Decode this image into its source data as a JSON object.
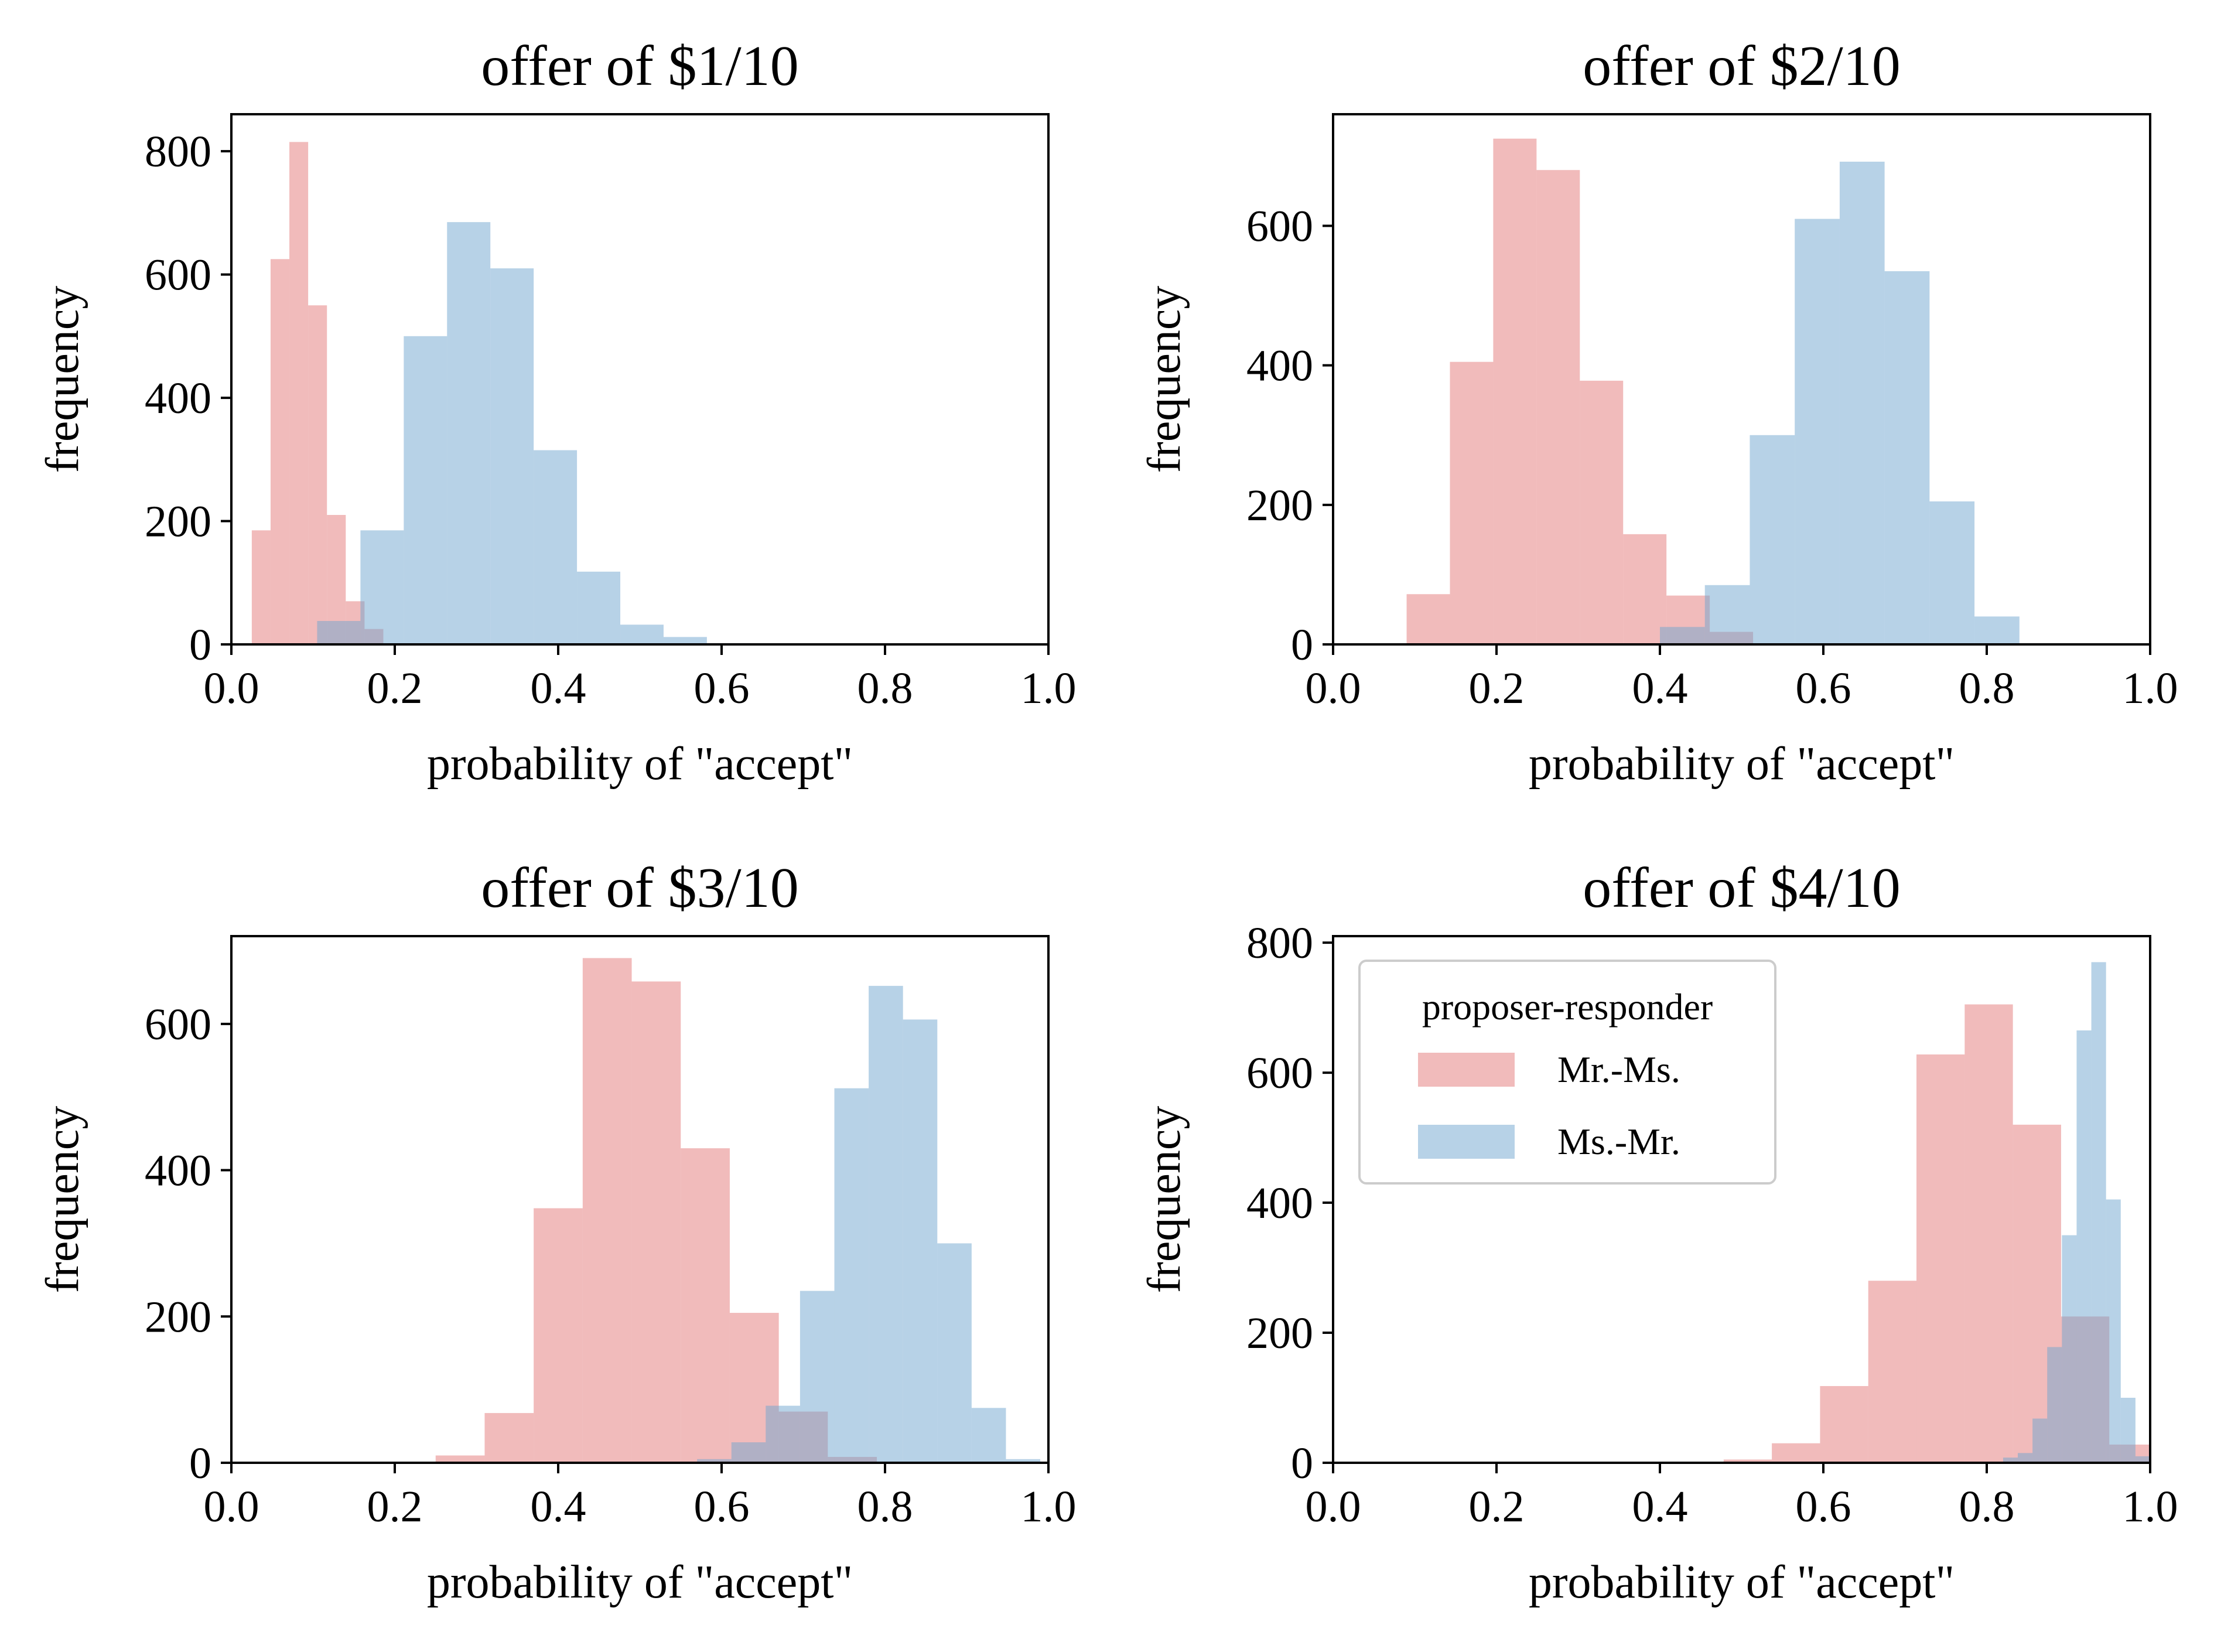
{
  "chart_data": [
    {
      "type": "histogram",
      "title": "offer of $1/10",
      "xlabel": "probability of \"accept\"",
      "ylabel": "frequency",
      "xlim": [
        0.0,
        1.0
      ],
      "ylim": [
        0,
        860
      ],
      "xticks": [
        "0.0",
        "0.2",
        "0.4",
        "0.6",
        "0.8",
        "1.0"
      ],
      "yticks": [
        0,
        200,
        400,
        600,
        800
      ],
      "series": [
        {
          "name": "Mr.-Ms.",
          "bins": [
            [
              0.025,
              0.048,
              185
            ],
            [
              0.048,
              0.071,
              625
            ],
            [
              0.071,
              0.094,
              815
            ],
            [
              0.094,
              0.117,
              550
            ],
            [
              0.117,
              0.14,
              210
            ],
            [
              0.14,
              0.163,
              70
            ],
            [
              0.163,
              0.186,
              25
            ]
          ]
        },
        {
          "name": "Ms.-Mr.",
          "bins": [
            [
              0.105,
              0.158,
              38
            ],
            [
              0.158,
              0.211,
              185
            ],
            [
              0.211,
              0.264,
              500
            ],
            [
              0.264,
              0.317,
              685
            ],
            [
              0.317,
              0.37,
              610
            ],
            [
              0.37,
              0.423,
              315
            ],
            [
              0.423,
              0.476,
              118
            ],
            [
              0.476,
              0.529,
              32
            ],
            [
              0.529,
              0.582,
              12
            ],
            [
              0.582,
              0.635,
              2
            ]
          ]
        }
      ]
    },
    {
      "type": "histogram",
      "title": "offer of $2/10",
      "xlabel": "probability of \"accept\"",
      "ylabel": "frequency",
      "xlim": [
        0.0,
        1.0
      ],
      "ylim": [
        0,
        760
      ],
      "xticks": [
        "0.0",
        "0.2",
        "0.4",
        "0.6",
        "0.8",
        "1.0"
      ],
      "yticks": [
        0,
        200,
        400,
        600
      ],
      "series": [
        {
          "name": "Mr.-Ms.",
          "bins": [
            [
              0.09,
              0.143,
              72
            ],
            [
              0.143,
              0.196,
              405
            ],
            [
              0.196,
              0.249,
              725
            ],
            [
              0.249,
              0.302,
              680
            ],
            [
              0.302,
              0.355,
              378
            ],
            [
              0.355,
              0.408,
              158
            ],
            [
              0.408,
              0.461,
              70
            ],
            [
              0.461,
              0.514,
              18
            ]
          ]
        },
        {
          "name": "Ms.-Mr.",
          "bins": [
            [
              0.4,
              0.455,
              25
            ],
            [
              0.455,
              0.51,
              85
            ],
            [
              0.51,
              0.565,
              300
            ],
            [
              0.565,
              0.62,
              610
            ],
            [
              0.62,
              0.675,
              692
            ],
            [
              0.675,
              0.73,
              535
            ],
            [
              0.73,
              0.785,
              205
            ],
            [
              0.785,
              0.84,
              40
            ]
          ]
        }
      ]
    },
    {
      "type": "histogram",
      "title": "offer of $3/10",
      "xlabel": "probability of \"accept\"",
      "ylabel": "frequency",
      "xlim": [
        0.0,
        1.0
      ],
      "ylim": [
        0,
        720
      ],
      "xticks": [
        "0.0",
        "0.2",
        "0.4",
        "0.6",
        "0.8",
        "1.0"
      ],
      "yticks": [
        0,
        200,
        400,
        600
      ],
      "series": [
        {
          "name": "Mr.-Ms.",
          "bins": [
            [
              0.25,
              0.31,
              10
            ],
            [
              0.31,
              0.37,
              68
            ],
            [
              0.37,
              0.43,
              348
            ],
            [
              0.43,
              0.49,
              690
            ],
            [
              0.49,
              0.55,
              658
            ],
            [
              0.55,
              0.61,
              430
            ],
            [
              0.61,
              0.67,
              205
            ],
            [
              0.67,
              0.73,
              70
            ],
            [
              0.73,
              0.79,
              8
            ]
          ]
        },
        {
          "name": "Ms.-Mr.",
          "bins": [
            [
              0.57,
              0.612,
              5
            ],
            [
              0.612,
              0.654,
              28
            ],
            [
              0.654,
              0.696,
              78
            ],
            [
              0.696,
              0.738,
              235
            ],
            [
              0.738,
              0.78,
              512
            ],
            [
              0.78,
              0.822,
              652
            ],
            [
              0.822,
              0.864,
              606
            ],
            [
              0.864,
              0.906,
              300
            ],
            [
              0.906,
              0.948,
              75
            ],
            [
              0.948,
              0.99,
              5
            ]
          ]
        }
      ]
    },
    {
      "type": "histogram",
      "title": "offer of $4/10",
      "xlabel": "probability of \"accept\"",
      "ylabel": "frequency",
      "xlim": [
        0.0,
        1.0
      ],
      "ylim": [
        0,
        810
      ],
      "xticks": [
        "0.0",
        "0.2",
        "0.4",
        "0.6",
        "0.8",
        "1.0"
      ],
      "yticks": [
        0,
        200,
        400,
        600,
        800
      ],
      "series": [
        {
          "name": "Mr.-Ms.",
          "bins": [
            [
              0.478,
              0.537,
              5
            ],
            [
              0.537,
              0.596,
              30
            ],
            [
              0.596,
              0.655,
              118
            ],
            [
              0.655,
              0.714,
              280
            ],
            [
              0.714,
              0.773,
              628
            ],
            [
              0.773,
              0.832,
              705
            ],
            [
              0.832,
              0.891,
              520
            ],
            [
              0.891,
              0.95,
              225
            ],
            [
              0.95,
              1.009,
              28
            ]
          ]
        },
        {
          "name": "Ms.-Mr.",
          "bins": [
            [
              0.82,
              0.838,
              8
            ],
            [
              0.838,
              0.856,
              15
            ],
            [
              0.856,
              0.874,
              68
            ],
            [
              0.874,
              0.892,
              178
            ],
            [
              0.892,
              0.91,
              350
            ],
            [
              0.91,
              0.928,
              665
            ],
            [
              0.928,
              0.946,
              770
            ],
            [
              0.946,
              0.964,
              405
            ],
            [
              0.964,
              0.982,
              100
            ],
            [
              0.982,
              1.0,
              10
            ]
          ]
        }
      ],
      "legend": {
        "title": "proposer-responder",
        "entries": [
          "Mr.-Ms.",
          "Ms.-Mr."
        ],
        "placement": "upper-left"
      }
    }
  ],
  "colors": {
    "Mr.-Ms.": "#e37777",
    "Ms.-Mr.": "#6fa6cf",
    "opacity": 0.5
  }
}
